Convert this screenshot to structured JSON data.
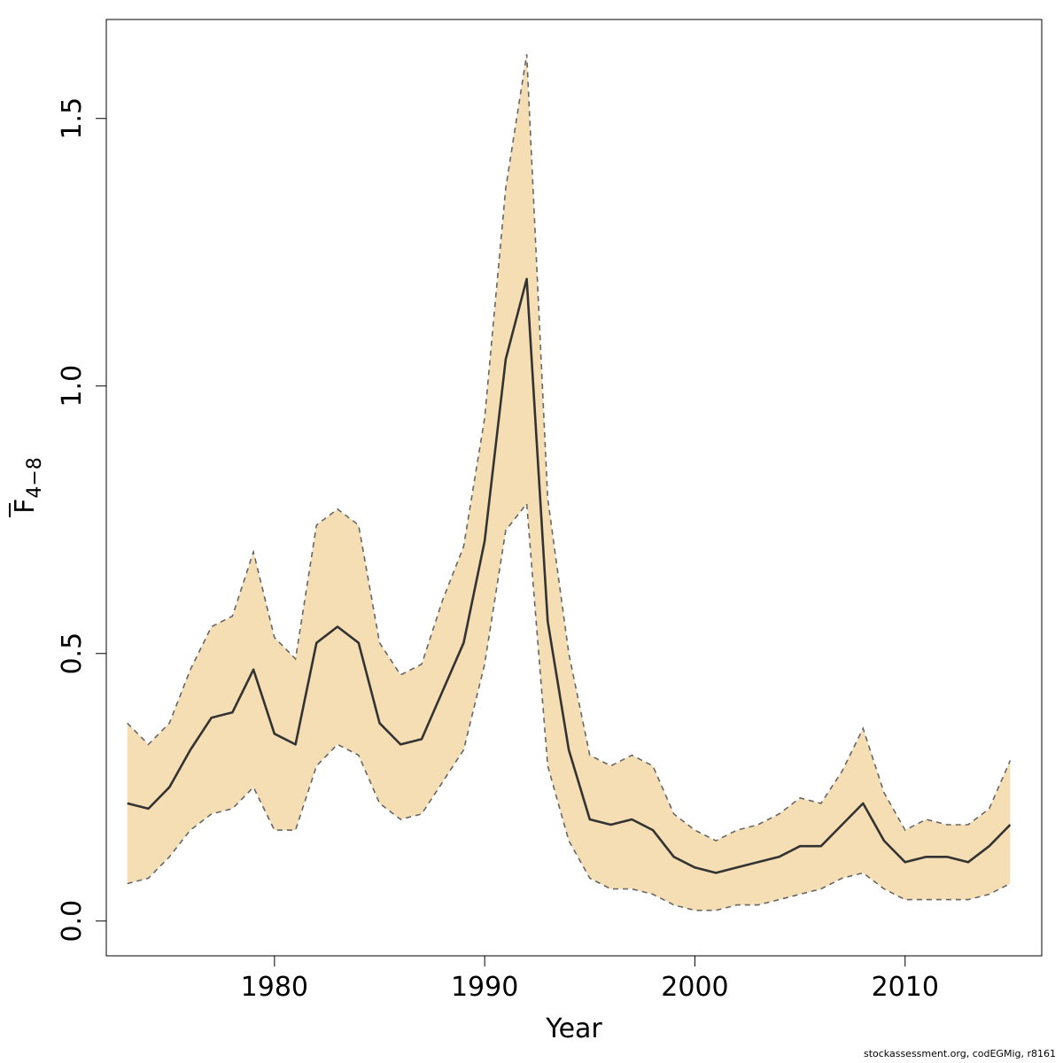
{
  "chart_data": {
    "type": "area",
    "xlabel": "Year",
    "ylabel_main": "F",
    "ylabel_sub": "4−8",
    "xlim": [
      1972,
      2016.5
    ],
    "ylim": [
      -0.065,
      1.685
    ],
    "x_ticks": [
      1980,
      1990,
      2000,
      2010
    ],
    "y_ticks": [
      0.0,
      0.5,
      1.0,
      1.5
    ],
    "x_tick_labels": [
      "1980",
      "1990",
      "2000",
      "2010"
    ],
    "y_tick_labels": [
      "0.0",
      "0.5",
      "1.0",
      "1.5"
    ],
    "grid": false,
    "colors": {
      "band": "#F5DEB3",
      "line": "#333333",
      "bound": "#666666",
      "axis": "#000000"
    },
    "x": [
      1973,
      1974,
      1975,
      1976,
      1977,
      1978,
      1979,
      1980,
      1981,
      1982,
      1983,
      1984,
      1985,
      1986,
      1987,
      1988,
      1989,
      1990,
      1991,
      1992,
      1993,
      1994,
      1995,
      1996,
      1997,
      1998,
      1999,
      2000,
      2001,
      2002,
      2003,
      2004,
      2005,
      2006,
      2007,
      2008,
      2009,
      2010,
      2011,
      2012,
      2013,
      2014,
      2015
    ],
    "estimate": [
      0.22,
      0.21,
      0.25,
      0.32,
      0.38,
      0.39,
      0.47,
      0.35,
      0.33,
      0.52,
      0.55,
      0.52,
      0.37,
      0.33,
      0.34,
      0.43,
      0.52,
      0.71,
      1.05,
      1.2,
      0.56,
      0.32,
      0.19,
      0.18,
      0.19,
      0.17,
      0.12,
      0.1,
      0.09,
      0.1,
      0.11,
      0.12,
      0.14,
      0.14,
      0.18,
      0.22,
      0.15,
      0.11,
      0.12,
      0.12,
      0.11,
      0.14,
      0.18
    ],
    "upper": [
      0.37,
      0.33,
      0.37,
      0.47,
      0.55,
      0.57,
      0.69,
      0.53,
      0.49,
      0.74,
      0.77,
      0.74,
      0.52,
      0.46,
      0.48,
      0.6,
      0.7,
      0.94,
      1.37,
      1.62,
      0.79,
      0.5,
      0.31,
      0.29,
      0.31,
      0.29,
      0.2,
      0.17,
      0.15,
      0.17,
      0.18,
      0.2,
      0.23,
      0.22,
      0.28,
      0.36,
      0.24,
      0.17,
      0.19,
      0.18,
      0.18,
      0.21,
      0.3
    ],
    "lower": [
      0.07,
      0.08,
      0.12,
      0.17,
      0.2,
      0.21,
      0.25,
      0.17,
      0.17,
      0.29,
      0.33,
      0.31,
      0.22,
      0.19,
      0.2,
      0.26,
      0.32,
      0.48,
      0.73,
      0.78,
      0.29,
      0.15,
      0.08,
      0.06,
      0.06,
      0.05,
      0.03,
      0.02,
      0.02,
      0.03,
      0.03,
      0.04,
      0.05,
      0.06,
      0.08,
      0.09,
      0.06,
      0.04,
      0.04,
      0.04,
      0.04,
      0.05,
      0.07
    ]
  },
  "footer": {
    "credit": "stockassessment.org, codEGMig, r8161"
  }
}
